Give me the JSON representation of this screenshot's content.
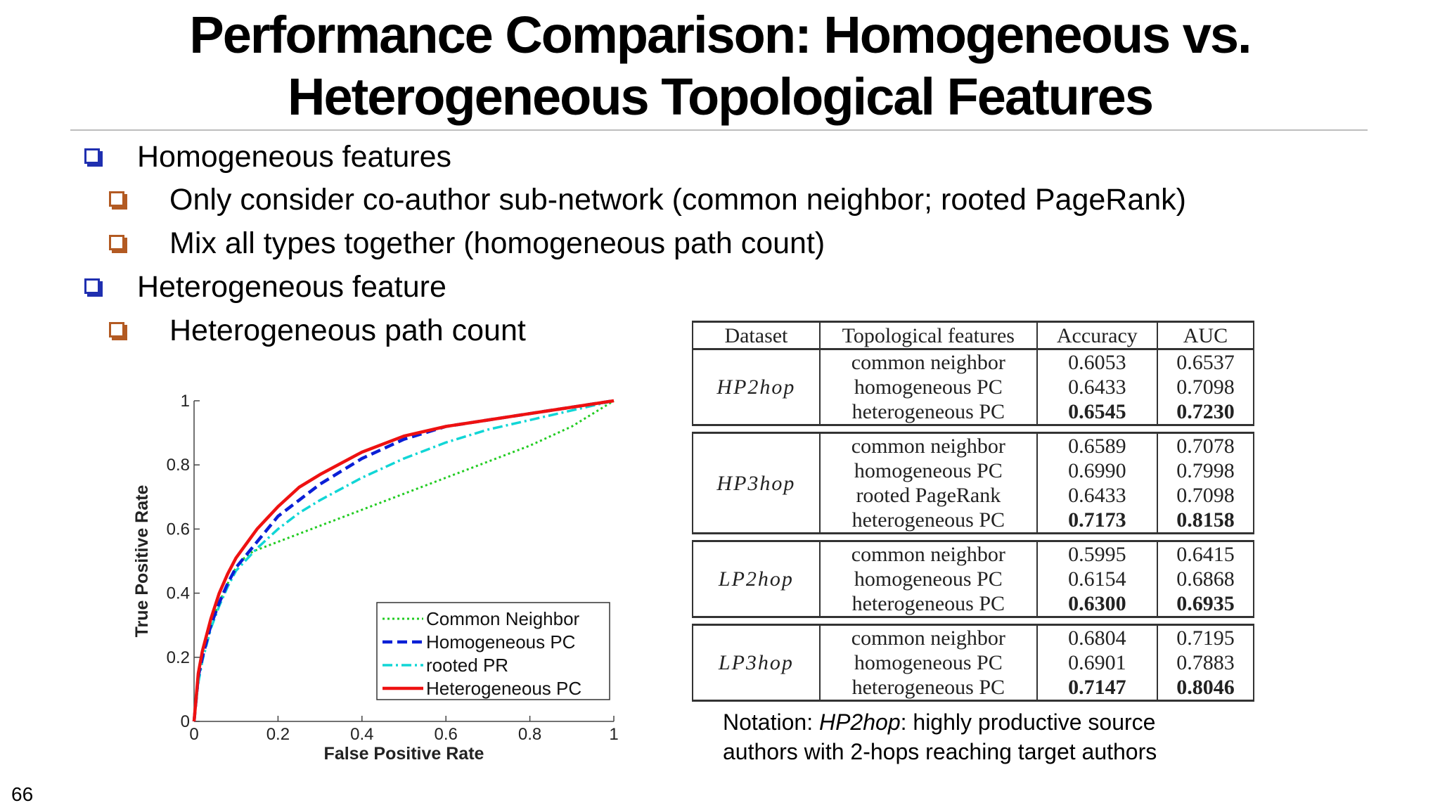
{
  "slide": {
    "title_line1": "Performance Comparison: Homogeneous vs.",
    "title_line2": "Heterogeneous Topological Features",
    "page_number": "66"
  },
  "bullets": [
    {
      "level": 1,
      "text": "Homogeneous features"
    },
    {
      "level": 2,
      "text": "Only consider co-author sub-network (common neighbor; rooted PageRank)"
    },
    {
      "level": 2,
      "text": "Mix all types together (homogeneous path count)"
    },
    {
      "level": 1,
      "text": "Heterogeneous feature"
    },
    {
      "level": 2,
      "text": "Heterogeneous path count"
    }
  ],
  "colors": {
    "bullet_level1": "#1f2fb0",
    "bullet_level2": "#b35a22"
  },
  "chart_data": {
    "type": "line",
    "title": "",
    "xlabel": "False Positive Rate",
    "ylabel": "True Positive Rate",
    "xlim": [
      0,
      1
    ],
    "ylim": [
      0,
      1
    ],
    "xticks": [
      "0",
      "0.2",
      "0.4",
      "0.6",
      "0.8",
      "1"
    ],
    "yticks": [
      "0",
      "0.2",
      "0.4",
      "0.6",
      "0.8",
      "1"
    ],
    "grid": false,
    "legend_position": "bottom-right",
    "series": [
      {
        "name": "Common Neighbor",
        "color": "#22cc22",
        "style": "dotted",
        "x": [
          0,
          0.01,
          0.02,
          0.04,
          0.06,
          0.08,
          0.1,
          0.12,
          0.14,
          0.2,
          0.3,
          0.4,
          0.5,
          0.6,
          0.7,
          0.8,
          0.9,
          1.0
        ],
        "y": [
          0,
          0.15,
          0.22,
          0.3,
          0.37,
          0.43,
          0.48,
          0.51,
          0.53,
          0.56,
          0.61,
          0.66,
          0.71,
          0.76,
          0.81,
          0.86,
          0.92,
          1.0
        ]
      },
      {
        "name": "Homogeneous PC",
        "color": "#0a1fd6",
        "style": "dashed",
        "x": [
          0,
          0.01,
          0.02,
          0.04,
          0.06,
          0.08,
          0.1,
          0.15,
          0.2,
          0.25,
          0.3,
          0.4,
          0.5,
          0.6,
          0.7,
          0.8,
          0.9,
          1.0
        ],
        "y": [
          0,
          0.14,
          0.2,
          0.3,
          0.37,
          0.43,
          0.48,
          0.56,
          0.64,
          0.69,
          0.74,
          0.82,
          0.88,
          0.92,
          0.94,
          0.96,
          0.98,
          1.0
        ]
      },
      {
        "name": "rooted PR",
        "color": "#11d6d6",
        "style": "dashdot",
        "x": [
          0,
          0.01,
          0.02,
          0.04,
          0.06,
          0.08,
          0.1,
          0.15,
          0.2,
          0.25,
          0.3,
          0.4,
          0.5,
          0.6,
          0.7,
          0.8,
          0.9,
          1.0
        ],
        "y": [
          0,
          0.12,
          0.19,
          0.29,
          0.36,
          0.42,
          0.47,
          0.54,
          0.6,
          0.65,
          0.69,
          0.76,
          0.82,
          0.87,
          0.91,
          0.94,
          0.97,
          1.0
        ]
      },
      {
        "name": "Heterogeneous PC",
        "color": "#ee1111",
        "style": "solid",
        "x": [
          0,
          0.01,
          0.02,
          0.04,
          0.06,
          0.08,
          0.1,
          0.15,
          0.2,
          0.25,
          0.3,
          0.4,
          0.5,
          0.6,
          0.7,
          0.8,
          0.9,
          1.0
        ],
        "y": [
          0,
          0.15,
          0.22,
          0.32,
          0.4,
          0.46,
          0.51,
          0.6,
          0.67,
          0.73,
          0.77,
          0.84,
          0.89,
          0.92,
          0.94,
          0.96,
          0.98,
          1.0
        ]
      }
    ]
  },
  "table": {
    "headers": [
      "Dataset",
      "Topological features",
      "Accuracy",
      "AUC"
    ],
    "groups": [
      {
        "dataset": "HP2hop",
        "rows": [
          {
            "feature": "common neighbor",
            "accuracy": "0.6053",
            "auc": "0.6537",
            "best": false
          },
          {
            "feature": "homogeneous PC",
            "accuracy": "0.6433",
            "auc": "0.7098",
            "best": false
          },
          {
            "feature": "heterogeneous PC",
            "accuracy": "0.6545",
            "auc": "0.7230",
            "best": true
          }
        ]
      },
      {
        "dataset": "HP3hop",
        "rows": [
          {
            "feature": "common neighbor",
            "accuracy": "0.6589",
            "auc": "0.7078",
            "best": false
          },
          {
            "feature": "homogeneous PC",
            "accuracy": "0.6990",
            "auc": "0.7998",
            "best": false
          },
          {
            "feature": "rooted PageRank",
            "accuracy": "0.6433",
            "auc": "0.7098",
            "best": false
          },
          {
            "feature": "heterogeneous PC",
            "accuracy": "0.7173",
            "auc": "0.8158",
            "best": true
          }
        ]
      },
      {
        "dataset": "LP2hop",
        "rows": [
          {
            "feature": "common neighbor",
            "accuracy": "0.5995",
            "auc": "0.6415",
            "best": false
          },
          {
            "feature": "homogeneous PC",
            "accuracy": "0.6154",
            "auc": "0.6868",
            "best": false
          },
          {
            "feature": "heterogeneous PC",
            "accuracy": "0.6300",
            "auc": "0.6935",
            "best": true
          }
        ]
      },
      {
        "dataset": "LP3hop",
        "rows": [
          {
            "feature": "common neighbor",
            "accuracy": "0.6804",
            "auc": "0.7195",
            "best": false
          },
          {
            "feature": "homogeneous PC",
            "accuracy": "0.6901",
            "auc": "0.7883",
            "best": false
          },
          {
            "feature": "heterogeneous PC",
            "accuracy": "0.7147",
            "auc": "0.8046",
            "best": true
          }
        ]
      }
    ]
  },
  "notation": {
    "prefix": "Notation: ",
    "term": "HP2hop",
    "line1_rest": ": highly productive source",
    "line2": "authors with 2-hops reaching target authors"
  }
}
